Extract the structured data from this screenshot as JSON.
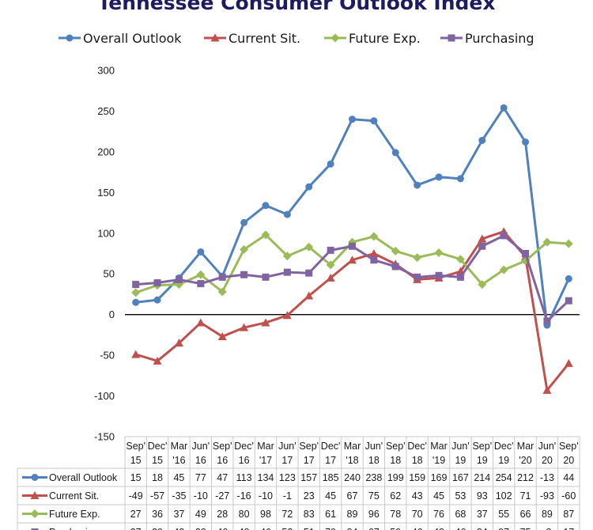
{
  "chart_data": {
    "type": "line",
    "title": "Tennessee Consumer Outlook Index",
    "categories": [
      [
        "Sep'",
        "15"
      ],
      [
        "Dec'",
        "15"
      ],
      [
        "Mar",
        "'16"
      ],
      [
        "Jun'",
        "16"
      ],
      [
        "Sep'",
        "16"
      ],
      [
        "Dec'",
        "16"
      ],
      [
        "Mar",
        "'17"
      ],
      [
        "Jun'",
        "17"
      ],
      [
        "Sep'",
        "17"
      ],
      [
        "Dec'",
        "17"
      ],
      [
        "Mar",
        "'18"
      ],
      [
        "Jun'",
        "18"
      ],
      [
        "Sep'",
        "18"
      ],
      [
        "Dec'",
        "18"
      ],
      [
        "Mar",
        "'19"
      ],
      [
        "Jun'",
        "19"
      ],
      [
        "Sep'",
        "19"
      ],
      [
        "Dec'",
        "19"
      ],
      [
        "Mar",
        "'20"
      ],
      [
        "Jun'",
        "20"
      ],
      [
        "Sep'",
        "20"
      ]
    ],
    "ylim": [
      -150,
      300
    ],
    "yticks": [
      300,
      250,
      200,
      150,
      100,
      50,
      0,
      -50,
      -100,
      -150
    ],
    "grid": false,
    "legend": "top",
    "data_table": true,
    "series": [
      {
        "name": "Overall Outlook",
        "color": "#4f81bd",
        "marker": "circle",
        "values": [
          15,
          18,
          45,
          77,
          47,
          113,
          134,
          123,
          157,
          185,
          240,
          238,
          199,
          159,
          169,
          167,
          214,
          254,
          212,
          -13,
          44
        ]
      },
      {
        "name": "Current Sit.",
        "color": "#c0504d",
        "marker": "triangle",
        "values": [
          -49,
          -57,
          -35,
          -10,
          -27,
          -16,
          -10,
          -1,
          23,
          45,
          67,
          75,
          62,
          43,
          45,
          53,
          93,
          102,
          71,
          -93,
          -60
        ]
      },
      {
        "name": "Future Exp.",
        "color": "#9bbb59",
        "marker": "diamond",
        "values": [
          27,
          36,
          37,
          49,
          28,
          80,
          98,
          72,
          83,
          61,
          89,
          96,
          78,
          70,
          76,
          68,
          37,
          55,
          66,
          89,
          87
        ]
      },
      {
        "name": "Purchasing",
        "color": "#8064a2",
        "marker": "square",
        "values": [
          37,
          39,
          43,
          38,
          46,
          49,
          46,
          52,
          51,
          79,
          84,
          67,
          59,
          46,
          48,
          46,
          84,
          97,
          75,
          -8,
          17
        ]
      }
    ]
  }
}
